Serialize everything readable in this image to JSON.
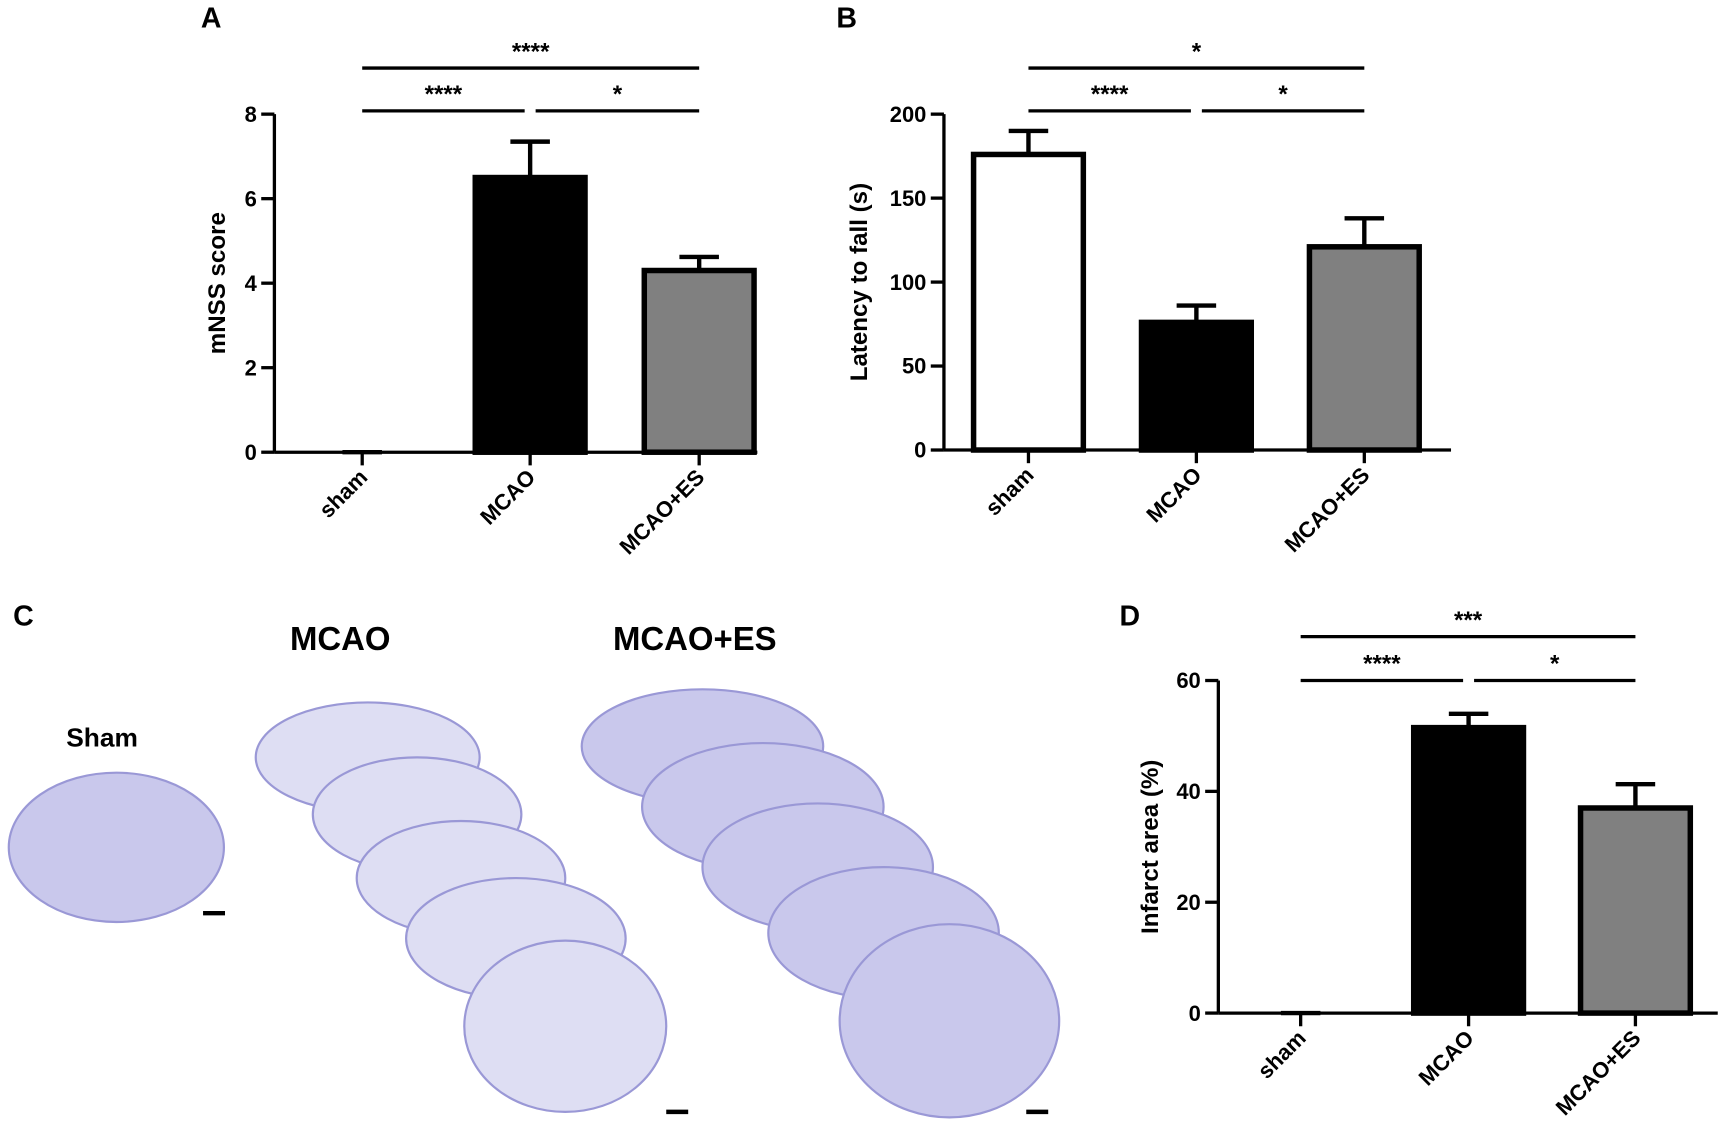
{
  "chart_data": [
    {
      "type": "bar",
      "panel": "A",
      "y_label": "mNSS score",
      "categories": [
        "sham",
        "MCAO",
        "MCAO+ES"
      ],
      "values": [
        0,
        6.5,
        4.3
      ],
      "errors": [
        0,
        0.85,
        0.32
      ],
      "colors": [
        "#ffffff",
        "#000000",
        "#808080"
      ],
      "ylim": [
        0,
        8
      ],
      "yticks": [
        0,
        2,
        4,
        6,
        8
      ],
      "annotations": [
        {
          "text": "****",
          "groups": [
            "sham",
            "MCAO"
          ]
        },
        {
          "text": "*",
          "groups": [
            "MCAO",
            "MCAO+ES"
          ]
        },
        {
          "text": "****",
          "groups": [
            "sham",
            "MCAO+ES"
          ]
        }
      ]
    },
    {
      "type": "bar",
      "panel": "B",
      "y_label": "Latency to fall (s)",
      "categories": [
        "sham",
        "MCAO",
        "MCAO+ES"
      ],
      "values": [
        176,
        76,
        121
      ],
      "errors": [
        14,
        10,
        17
      ],
      "colors": [
        "#ffffff",
        "#000000",
        "#808080"
      ],
      "ylim": [
        0,
        200
      ],
      "yticks": [
        0,
        50,
        100,
        150,
        200
      ],
      "annotations": [
        {
          "text": "****",
          "groups": [
            "sham",
            "MCAO"
          ]
        },
        {
          "text": "*",
          "groups": [
            "MCAO",
            "MCAO+ES"
          ]
        },
        {
          "text": "*",
          "groups": [
            "sham",
            "MCAO+ES"
          ]
        }
      ]
    },
    {
      "type": "bar",
      "panel": "D",
      "y_label": "Infarct area (%)",
      "categories": [
        "sham",
        "MCAO",
        "MCAO+ES"
      ],
      "values": [
        0,
        51.5,
        37
      ],
      "errors": [
        0,
        2.5,
        4.3
      ],
      "colors": [
        "#ffffff",
        "#000000",
        "#808080"
      ],
      "ylim": [
        0,
        60
      ],
      "yticks": [
        0,
        20,
        40,
        60
      ],
      "annotations": [
        {
          "text": "****",
          "groups": [
            "sham",
            "MCAO"
          ]
        },
        {
          "text": "*",
          "groups": [
            "MCAO",
            "MCAO+ES"
          ]
        },
        {
          "text": "***",
          "groups": [
            "sham",
            "MCAO+ES"
          ]
        }
      ]
    }
  ],
  "panel_c": {
    "panel": "C",
    "image_labels": [
      "Sham",
      "MCAO",
      "MCAO+ES"
    ]
  }
}
